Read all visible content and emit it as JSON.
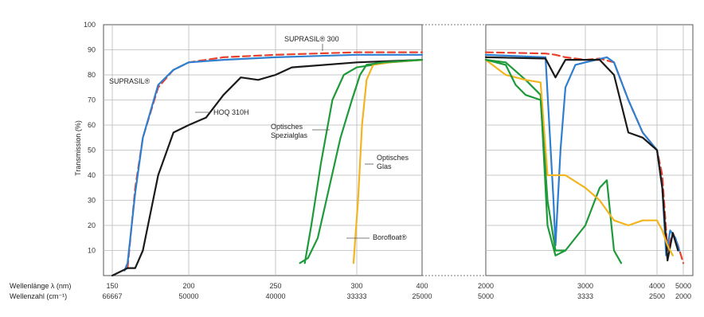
{
  "chart_data": {
    "type": "line",
    "ylabel": "Transmission (%)",
    "xlabel_nm": "Wellenlänge λ (nm)",
    "xlabel_cm": "Wellenzahl (cm⁻¹)",
    "ylim": [
      0,
      100
    ],
    "yticks": [
      "10",
      "20",
      "30",
      "40",
      "50",
      "60",
      "70",
      "80",
      "90",
      "100"
    ],
    "xticks_nm": [
      "150",
      "200",
      "250",
      "300",
      "400",
      "2000",
      "3000",
      "4000",
      "5000"
    ],
    "xticks_cm": [
      "66667",
      "50000",
      "40000",
      "33333",
      "25000",
      "5000",
      "3333",
      "2500",
      "2000"
    ],
    "annotations": [
      "SUPRASIL® 300",
      "SUPRASIL®",
      "HOQ 310H",
      "Optisches Spezialglas",
      "Optisches Glas",
      "Borofloat®"
    ],
    "series_colors": {
      "SUPRASIL® 300": "#e8402a",
      "SUPRASIL®": "#2e7fd0",
      "HOQ 310H": "#1a1a1a",
      "Optisches Spezialglas": "#1f9a3a",
      "Optisches Glas": "#f2b51f",
      "Borofloat®": "#1f9a3a"
    },
    "series": [
      {
        "name": "SUPRASIL® 300",
        "color": "#e8402a",
        "points": [
          [
            160,
            3
          ],
          [
            165,
            35
          ],
          [
            170,
            55
          ],
          [
            180,
            75
          ],
          [
            190,
            82
          ],
          [
            200,
            85
          ],
          [
            220,
            87
          ],
          [
            250,
            88
          ],
          [
            300,
            89
          ],
          [
            400,
            89
          ],
          [
            2000,
            89
          ],
          [
            2600,
            88.5
          ],
          [
            2700,
            88
          ],
          [
            2800,
            87
          ],
          [
            3000,
            86
          ],
          [
            3200,
            86.5
          ],
          [
            3400,
            85
          ],
          [
            3600,
            70
          ],
          [
            3800,
            57
          ],
          [
            4000,
            50
          ],
          [
            4200,
            40
          ],
          [
            4400,
            10
          ],
          [
            4600,
            17
          ],
          [
            4800,
            12
          ],
          [
            5000,
            5
          ]
        ]
      },
      {
        "name": "SUPRASIL®",
        "color": "#2e7fd0",
        "points": [
          [
            158,
            2
          ],
          [
            160,
            5
          ],
          [
            165,
            33
          ],
          [
            170,
            55
          ],
          [
            180,
            76
          ],
          [
            190,
            82
          ],
          [
            200,
            85
          ],
          [
            220,
            86
          ],
          [
            250,
            87
          ],
          [
            300,
            88
          ],
          [
            400,
            88
          ],
          [
            2000,
            88
          ],
          [
            2600,
            87
          ],
          [
            2680,
            30
          ],
          [
            2700,
            12
          ],
          [
            2750,
            50
          ],
          [
            2800,
            75
          ],
          [
            2900,
            84
          ],
          [
            3000,
            85
          ],
          [
            3300,
            87
          ],
          [
            3400,
            85
          ],
          [
            3600,
            70
          ],
          [
            3800,
            57
          ],
          [
            4000,
            50
          ],
          [
            4200,
            35
          ],
          [
            4350,
            8
          ],
          [
            4500,
            18
          ],
          [
            4700,
            15
          ],
          [
            4850,
            10
          ]
        ]
      },
      {
        "name": "HOQ 310H",
        "color": "#1a1a1a",
        "points": [
          [
            150,
            0
          ],
          [
            160,
            3
          ],
          [
            165,
            3
          ],
          [
            170,
            10
          ],
          [
            180,
            40
          ],
          [
            190,
            57
          ],
          [
            200,
            60
          ],
          [
            210,
            63
          ],
          [
            220,
            72
          ],
          [
            230,
            79
          ],
          [
            240,
            78
          ],
          [
            250,
            80
          ],
          [
            260,
            83
          ],
          [
            300,
            85
          ],
          [
            400,
            86
          ],
          [
            2000,
            87
          ],
          [
            2600,
            86.5
          ],
          [
            2700,
            79
          ],
          [
            2800,
            86
          ],
          [
            3000,
            86
          ],
          [
            3200,
            86
          ],
          [
            3400,
            80
          ],
          [
            3600,
            57
          ],
          [
            3800,
            55
          ],
          [
            4000,
            50
          ],
          [
            4200,
            35
          ],
          [
            4400,
            6
          ],
          [
            4600,
            17
          ],
          [
            4800,
            10
          ]
        ]
      },
      {
        "name": "Optisches Spezialglas",
        "color": "#1f9a3a",
        "points": [
          [
            268,
            5
          ],
          [
            272,
            20
          ],
          [
            278,
            45
          ],
          [
            285,
            70
          ],
          [
            292,
            80
          ],
          [
            300,
            83
          ],
          [
            350,
            85
          ],
          [
            400,
            86
          ],
          [
            2000,
            86
          ],
          [
            2200,
            85
          ],
          [
            2400,
            78
          ],
          [
            2550,
            72
          ],
          [
            2620,
            20
          ],
          [
            2700,
            8
          ],
          [
            2800,
            10
          ],
          [
            3000,
            20
          ],
          [
            3200,
            35
          ],
          [
            3300,
            38
          ],
          [
            3400,
            10
          ],
          [
            3500,
            5
          ]
        ]
      },
      {
        "name": "Optisches Glas",
        "color": "#f2b51f",
        "points": [
          [
            298,
            5
          ],
          [
            302,
            30
          ],
          [
            308,
            60
          ],
          [
            315,
            78
          ],
          [
            325,
            84
          ],
          [
            350,
            85
          ],
          [
            400,
            86
          ],
          [
            2000,
            86
          ],
          [
            2200,
            80
          ],
          [
            2400,
            78
          ],
          [
            2550,
            77
          ],
          [
            2620,
            40
          ],
          [
            2800,
            40
          ],
          [
            3000,
            35
          ],
          [
            3200,
            30
          ],
          [
            3400,
            22
          ],
          [
            3600,
            20
          ],
          [
            3800,
            22
          ],
          [
            4000,
            22
          ],
          [
            4200,
            18
          ],
          [
            4400,
            12
          ],
          [
            4600,
            8
          ]
        ]
      },
      {
        "name": "Borofloat®",
        "color": "#1f9a3a",
        "points": [
          [
            265,
            5
          ],
          [
            270,
            7
          ],
          [
            276,
            15
          ],
          [
            283,
            35
          ],
          [
            290,
            55
          ],
          [
            297,
            70
          ],
          [
            305,
            80
          ],
          [
            315,
            84
          ],
          [
            340,
            85
          ],
          [
            400,
            86
          ],
          [
            2000,
            86
          ],
          [
            2200,
            84
          ],
          [
            2300,
            76
          ],
          [
            2400,
            72
          ],
          [
            2550,
            70
          ],
          [
            2620,
            30
          ],
          [
            2700,
            10
          ],
          [
            2800,
            10
          ]
        ]
      }
    ]
  }
}
